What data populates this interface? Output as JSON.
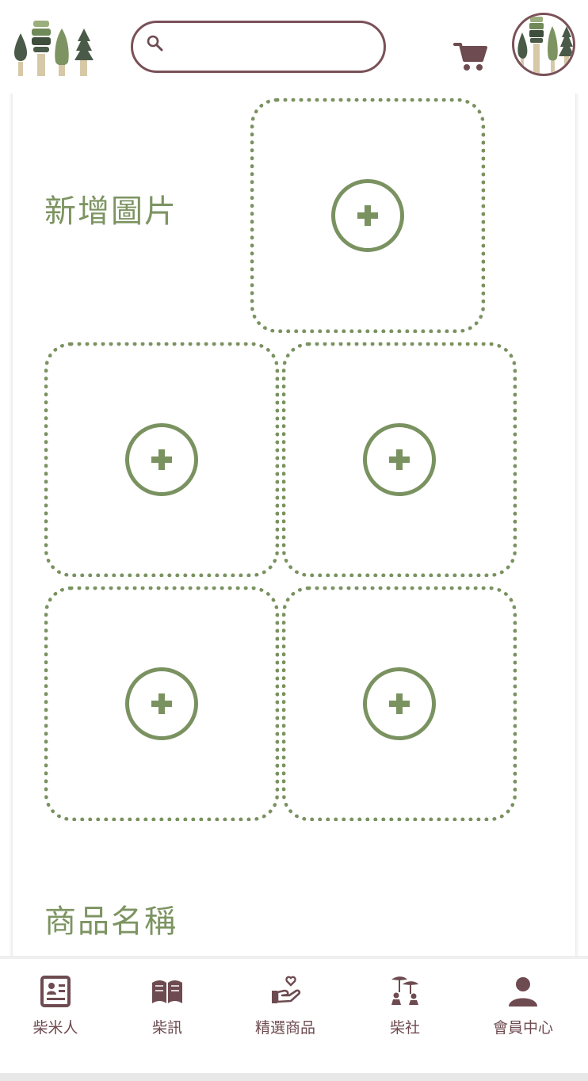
{
  "colors": {
    "accent_green": "#7a9260",
    "brand_brown": "#7a5158",
    "title_green": "#7d9462"
  },
  "header": {
    "logo_icon": "forest-logo",
    "search": {
      "value": "",
      "placeholder": ""
    },
    "cart_icon": "shopping-cart-icon",
    "avatar_icon": "forest-avatar"
  },
  "form": {
    "images_label": "新增圖片",
    "name_label": "商品名稱",
    "upload_slots": 5,
    "upload_icon": "plus-circle-icon"
  },
  "bottom_nav": {
    "items": [
      {
        "label": "柴米人",
        "icon": "profile-card-icon"
      },
      {
        "label": "柴訊",
        "icon": "open-book-icon"
      },
      {
        "label": "精選商品",
        "icon": "hand-heart-icon"
      },
      {
        "label": "柴社",
        "icon": "community-icon"
      },
      {
        "label": "會員中心",
        "icon": "user-icon"
      }
    ]
  }
}
